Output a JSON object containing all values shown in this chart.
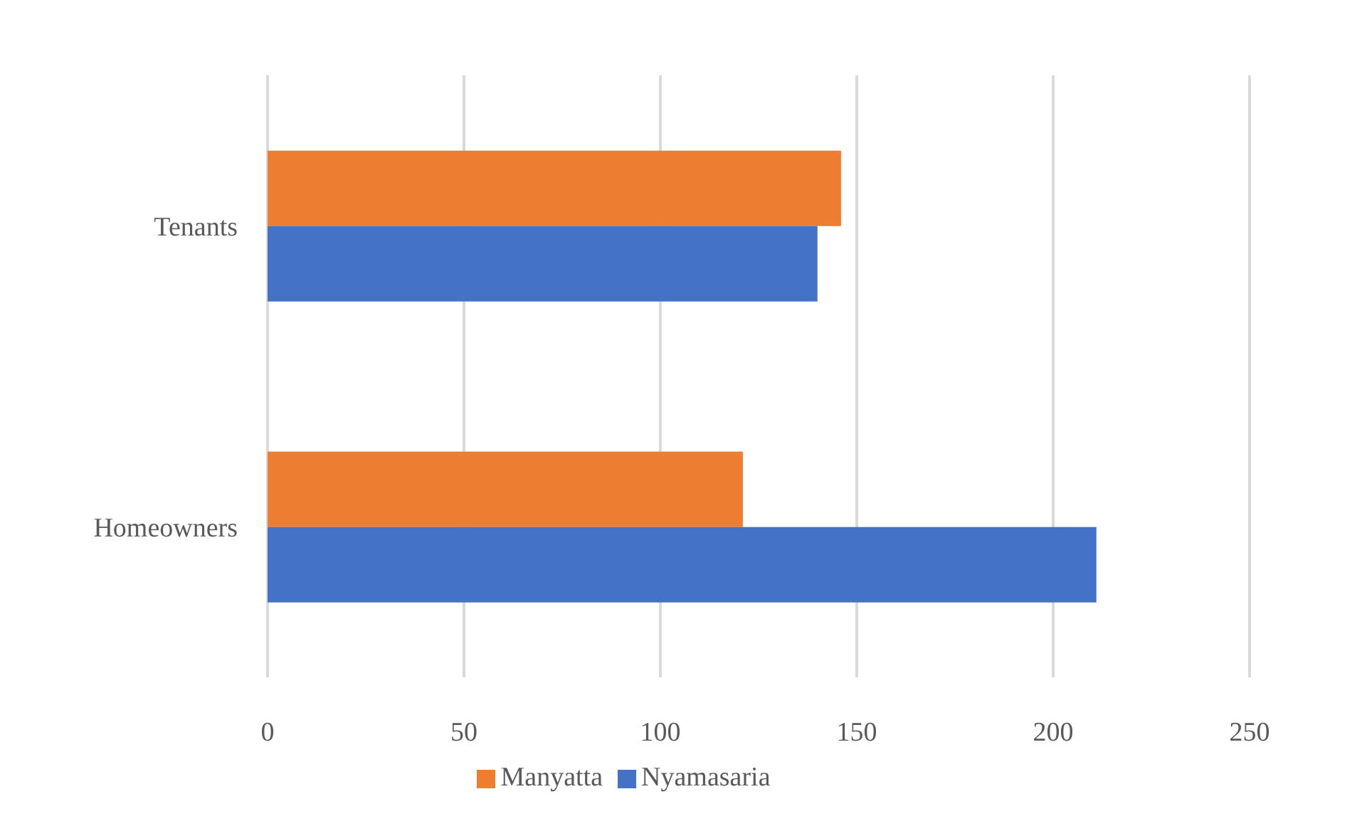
{
  "chart_data": {
    "type": "bar",
    "orientation": "horizontal",
    "categories": [
      "Tenants",
      "Homeowners"
    ],
    "series": [
      {
        "name": "Manyatta",
        "color": "#ed7d31",
        "values": [
          146,
          121
        ]
      },
      {
        "name": "Nyamasaria",
        "color": "#4472c4",
        "values": [
          140,
          211
        ]
      }
    ],
    "xlim": [
      0,
      250
    ],
    "xticks": [
      0,
      50,
      100,
      150,
      200,
      250
    ],
    "grid": "x",
    "legend": "bottom"
  }
}
